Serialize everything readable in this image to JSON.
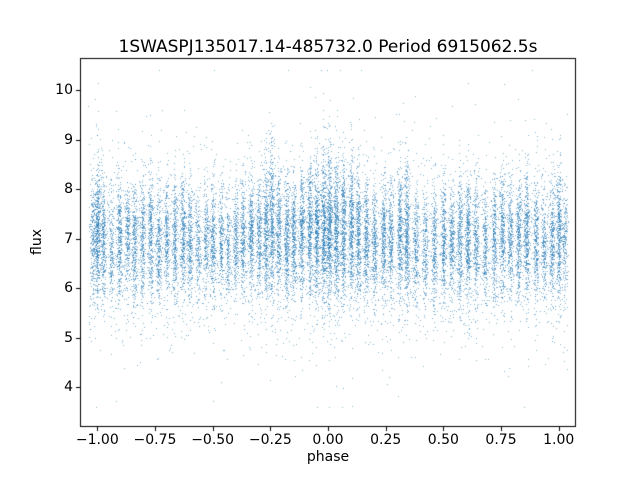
{
  "chart_data": {
    "type": "scatter",
    "title": "1SWASPJ135017.14-485732.0 Period 6915062.5s",
    "xlabel": "phase",
    "ylabel": "flux",
    "xlim": [
      -1.075,
      1.075
    ],
    "ylim": [
      3.2,
      10.65
    ],
    "xticks": {
      "values": [
        -1.0,
        -0.75,
        -0.5,
        -0.25,
        0.0,
        0.25,
        0.5,
        0.75,
        1.0
      ],
      "labels": [
        "−1.00",
        "−0.75",
        "−0.50",
        "−0.25",
        "0.00",
        "0.25",
        "0.50",
        "0.75",
        "1.00"
      ]
    },
    "yticks": {
      "values": [
        4,
        5,
        6,
        7,
        8,
        9,
        10
      ],
      "labels": [
        "4",
        "5",
        "6",
        "7",
        "8",
        "9",
        "10"
      ]
    },
    "marker_color": "#1f77b4",
    "marker_alpha": 0.55,
    "marker_size_px": 1,
    "flux_min": 3.6,
    "flux_max": 10.4,
    "n_points_estimate": 23000,
    "seed": 1350,
    "background": {
      "n": 2600,
      "phase_min": -1.04,
      "phase_max": 1.04,
      "flux_mean": 6.8,
      "flux_sigma": 0.95
    },
    "column_width": 0.006,
    "outlier_fraction": 0.03,
    "outlier_sigma_scale": 2.2,
    "columns_phase_n_mean_sigma": [
      [
        -1.02,
        220,
        7.0,
        0.6
      ],
      [
        -1.0,
        480,
        7.2,
        0.65
      ],
      [
        -0.975,
        320,
        7.0,
        0.6
      ],
      [
        -0.94,
        200,
        6.8,
        0.55
      ],
      [
        -0.905,
        340,
        7.0,
        0.6
      ],
      [
        -0.87,
        260,
        7.1,
        0.55
      ],
      [
        -0.84,
        300,
        6.9,
        0.6
      ],
      [
        -0.805,
        280,
        7.0,
        0.6
      ],
      [
        -0.77,
        340,
        7.1,
        0.65
      ],
      [
        -0.735,
        300,
        6.9,
        0.6
      ],
      [
        -0.7,
        260,
        7.0,
        0.55
      ],
      [
        -0.665,
        300,
        7.0,
        0.6
      ],
      [
        -0.63,
        340,
        7.1,
        0.6
      ],
      [
        -0.6,
        300,
        6.9,
        0.55
      ],
      [
        -0.565,
        200,
        6.8,
        0.5
      ],
      [
        -0.53,
        240,
        6.9,
        0.55
      ],
      [
        -0.5,
        300,
        7.0,
        0.6
      ],
      [
        -0.465,
        240,
        6.9,
        0.55
      ],
      [
        -0.435,
        200,
        6.8,
        0.5
      ],
      [
        -0.4,
        250,
        7.0,
        0.55
      ],
      [
        -0.37,
        300,
        7.0,
        0.6
      ],
      [
        -0.335,
        350,
        7.1,
        0.6
      ],
      [
        -0.3,
        300,
        7.0,
        0.6
      ],
      [
        -0.27,
        380,
        7.2,
        0.7
      ],
      [
        -0.245,
        440,
        7.3,
        0.75
      ],
      [
        -0.215,
        340,
        7.1,
        0.65
      ],
      [
        -0.18,
        390,
        7.0,
        0.65
      ],
      [
        -0.15,
        350,
        7.0,
        0.6
      ],
      [
        -0.115,
        390,
        7.1,
        0.65
      ],
      [
        -0.08,
        440,
        7.2,
        0.7
      ],
      [
        -0.05,
        480,
        7.2,
        0.7
      ],
      [
        -0.02,
        520,
        7.2,
        0.7
      ],
      [
        0.005,
        580,
        7.2,
        0.75
      ],
      [
        0.035,
        500,
        7.1,
        0.7
      ],
      [
        0.065,
        450,
        7.1,
        0.65
      ],
      [
        0.1,
        450,
        7.2,
        0.7
      ],
      [
        0.13,
        400,
        7.0,
        0.65
      ],
      [
        0.165,
        350,
        7.0,
        0.6
      ],
      [
        0.2,
        300,
        6.9,
        0.6
      ],
      [
        0.24,
        340,
        7.0,
        0.6
      ],
      [
        0.27,
        300,
        7.0,
        0.6
      ],
      [
        0.31,
        390,
        7.1,
        0.65
      ],
      [
        0.34,
        440,
        7.1,
        0.7
      ],
      [
        0.38,
        280,
        6.9,
        0.6
      ],
      [
        0.42,
        230,
        6.8,
        0.55
      ],
      [
        0.46,
        290,
        6.9,
        0.6
      ],
      [
        0.5,
        340,
        7.0,
        0.6
      ],
      [
        0.535,
        300,
        6.9,
        0.6
      ],
      [
        0.57,
        340,
        7.0,
        0.65
      ],
      [
        0.605,
        390,
        7.0,
        0.65
      ],
      [
        0.64,
        300,
        6.9,
        0.6
      ],
      [
        0.68,
        250,
        6.9,
        0.55
      ],
      [
        0.72,
        300,
        7.0,
        0.6
      ],
      [
        0.755,
        340,
        7.1,
        0.65
      ],
      [
        0.79,
        300,
        7.0,
        0.6
      ],
      [
        0.825,
        340,
        7.0,
        0.6
      ],
      [
        0.86,
        390,
        7.1,
        0.65
      ],
      [
        0.9,
        300,
        7.0,
        0.6
      ],
      [
        0.935,
        240,
        6.9,
        0.55
      ],
      [
        0.97,
        300,
        7.0,
        0.6
      ],
      [
        1.0,
        400,
        7.1,
        0.65
      ],
      [
        1.025,
        180,
        7.0,
        0.55
      ]
    ]
  }
}
